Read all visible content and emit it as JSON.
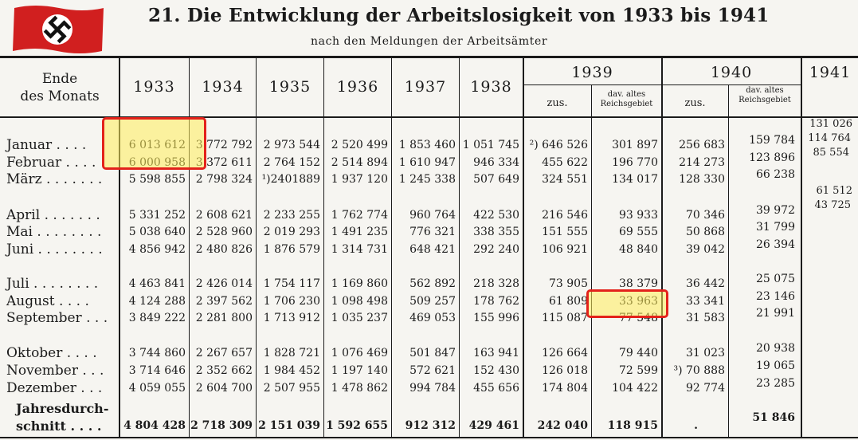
{
  "document": {
    "title": "21. Die Entwicklung der Arbeitslosigkeit von 1933 bis 1941",
    "subtitle": "nach den Meldungen der Arbeitsämter"
  },
  "header": {
    "row_label_line1": "Ende",
    "row_label_line2": "des Monats",
    "years": [
      "1933",
      "1934",
      "1935",
      "1936",
      "1937",
      "1938"
    ],
    "year_1939": "1939",
    "year_1940": "1940",
    "year_1941": "1941",
    "zus": "zus.",
    "dav_line1": "dav. altes",
    "dav_line2": "Reichsgebiet"
  },
  "rows": [
    {
      "month": "Januar . . . .",
      "v": [
        "6 013 612",
        "3 772 792",
        "2 973 544",
        "2 520 499",
        "1 853 460",
        "1 051 745",
        "²) 646 526",
        "301 897",
        "256 683",
        "159 784"
      ],
      "v41": "131 026"
    },
    {
      "month": "Februar . . . .",
      "v": [
        "6 000 958",
        "3 372 611",
        "2 764 152",
        "2 514 894",
        "1 610 947",
        "946 334",
        "455 622",
        "196 770",
        "214 273",
        "123 896"
      ],
      "v41": "114 764"
    },
    {
      "month": "März . . . . . . .",
      "v": [
        "5 598 855",
        "2 798 324",
        "¹)2401889",
        "1 937 120",
        "1 245 338",
        "507 649",
        "324 551",
        "134 017",
        "128 330",
        "66 238"
      ],
      "v41": "85 554"
    },
    {
      "month": "April . . . . . . .",
      "v": [
        "5 331 252",
        "2 608 621",
        "2 233 255",
        "1 762 774",
        "960 764",
        "422 530",
        "216 546",
        "93 933",
        "70 346",
        "39 972"
      ],
      "v41": "61 512"
    },
    {
      "month": "Mai . . . . . . . .",
      "v": [
        "5 038 640",
        "2 528 960",
        "2 019 293",
        "1 491 235",
        "776 321",
        "338 355",
        "151 555",
        "69 555",
        "50 868",
        "31 799"
      ],
      "v41": "43 725"
    },
    {
      "month": "Juni . . . . . . . .",
      "v": [
        "4 856 942",
        "2 480 826",
        "1 876 579",
        "1 314 731",
        "648 421",
        "292 240",
        "106 921",
        "48 840",
        "39 042",
        "26 394"
      ],
      "v41": ""
    },
    {
      "month": "Juli . . . . . . . .",
      "v": [
        "4 463 841",
        "2 426 014",
        "1 754 117",
        "1 169 860",
        "562 892",
        "218 328",
        "73 905",
        "38 379",
        "36 442",
        "25 075"
      ],
      "v41": ""
    },
    {
      "month": "August . . . .",
      "v": [
        "4 124 288",
        "2 397 562",
        "1 706 230",
        "1 098 498",
        "509 257",
        "178 762",
        "61 809",
        "33 963",
        "33 341",
        "23 146"
      ],
      "v41": ""
    },
    {
      "month": "September . . .",
      "v": [
        "3 849 222",
        "2 281 800",
        "1 713 912",
        "1 035 237",
        "469 053",
        "155 996",
        "115 087",
        "77 548",
        "31 583",
        "21 991"
      ],
      "v41": ""
    },
    {
      "month": "Oktober . . . .",
      "v": [
        "3 744 860",
        "2 267 657",
        "1 828 721",
        "1 076 469",
        "501 847",
        "163 941",
        "126 664",
        "79 440",
        "31 023",
        "20 938"
      ],
      "v41": ""
    },
    {
      "month": "November . . .",
      "v": [
        "3 714 646",
        "2 352 662",
        "1 984 452",
        "1 197 140",
        "572 621",
        "152 430",
        "126 018",
        "72 599",
        "³) 70 888",
        "19 065"
      ],
      "v41": ""
    },
    {
      "month": "Dezember . . .",
      "v": [
        "4 059 055",
        "2 604 700",
        "2 507 955",
        "1 478 862",
        "994 784",
        "455 656",
        "174 804",
        "104 422",
        "92 774",
        "23 285"
      ],
      "v41": ""
    }
  ],
  "total": {
    "label_line1": "Jahresdurch-",
    "label_line2": "schnitt . . . .",
    "v": [
      "4 804 428",
      "2 718 309",
      "2 151 039",
      "1 592 655",
      "912 312",
      "429 461",
      "242 040",
      "118 915",
      ".",
      "51 846"
    ]
  },
  "colors": {
    "highlight_border": "#e3221b",
    "highlight_fill": "#ffec5a"
  }
}
